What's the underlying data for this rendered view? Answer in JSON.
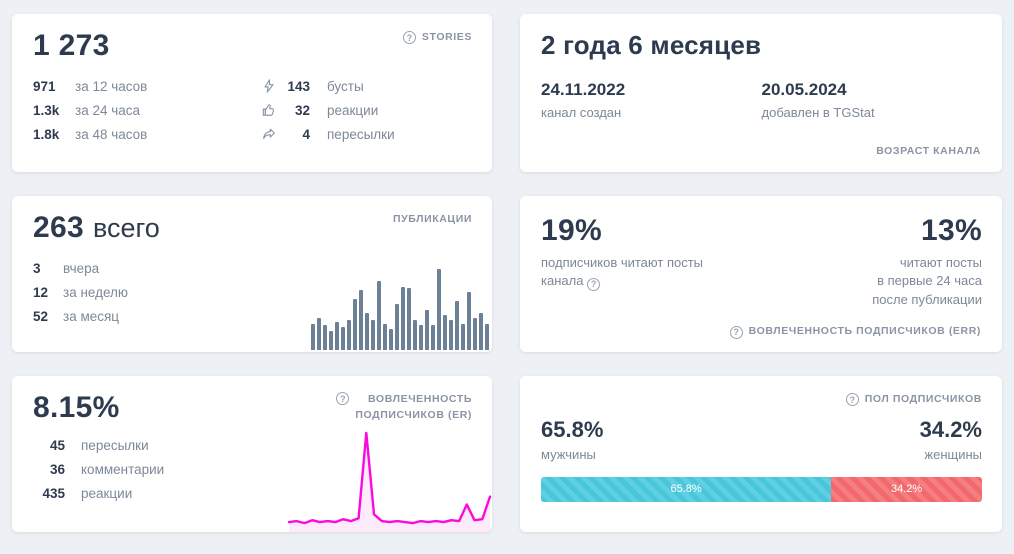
{
  "colors": {
    "page_bg": "#edf0f4",
    "card_bg": "#ffffff",
    "dark": "#2e3b4e",
    "gray": "#7d8899",
    "caps": "#8a94a5",
    "bar": "#6d8196",
    "magenta": "#fb0add",
    "magenta_fill": "#fbd9f6",
    "male": "#4ac6da",
    "male_stripe": "#5ed0e2",
    "female": "#f2686c",
    "female_stripe": "#f47e80"
  },
  "cards": {
    "stories": {
      "label": "STORIES",
      "value": "1 273",
      "left_stats": [
        {
          "value": "971",
          "label": "за 12 часов"
        },
        {
          "value": "1.3k",
          "label": "за 24 часа"
        },
        {
          "value": "1.8k",
          "label": "за 48 часов"
        }
      ],
      "right_stats": [
        {
          "icon": "bolt-icon",
          "value": "143",
          "label": "бусты"
        },
        {
          "icon": "thumb-up-icon",
          "value": "32",
          "label": "реакции"
        },
        {
          "icon": "forward-icon",
          "value": "4",
          "label": "пересылки"
        }
      ]
    },
    "age": {
      "title": "2 года 6 месяцев",
      "created": {
        "value": "24.11.2022",
        "label": "канал создан"
      },
      "added": {
        "value": "20.05.2024",
        "label": "добавлен в TGStat"
      },
      "footer": "ВОЗРАСТ КАНАЛА"
    },
    "publications": {
      "value": "263",
      "suffix": "всего",
      "label": "ПУБЛИКАЦИИ",
      "stats": [
        {
          "value": "3",
          "label": "вчера"
        },
        {
          "value": "12",
          "label": "за неделю"
        },
        {
          "value": "52",
          "label": "за месяц"
        }
      ],
      "chart_data": {
        "type": "bar",
        "values": [
          0.3,
          0.36,
          0.28,
          0.22,
          0.32,
          0.26,
          0.34,
          0.58,
          0.68,
          0.42,
          0.34,
          0.78,
          0.3,
          0.24,
          0.52,
          0.72,
          0.7,
          0.34,
          0.28,
          0.46,
          0.28,
          0.92,
          0.4,
          0.34,
          0.56,
          0.3,
          0.66,
          0.36,
          0.42,
          0.3
        ]
      }
    },
    "err": {
      "left": {
        "value": "19%",
        "label": "подписчиков читают посты\nканала"
      },
      "right": {
        "value": "13%",
        "label": "читают посты\nв первые 24 часа\nпосле публикации"
      },
      "footer": "ВОВЛЕЧЕННОСТЬ ПОДПИСЧИКОВ (ERR)"
    },
    "er": {
      "value": "8.15%",
      "label": "ВОВЛЕЧЕННОСТЬ\nПОДПИСЧИКОВ (ER)",
      "stats": [
        {
          "value": "45",
          "label": "пересылки"
        },
        {
          "value": "36",
          "label": "комментарии"
        },
        {
          "value": "435",
          "label": "реакции"
        }
      ],
      "chart_data": {
        "type": "line",
        "values": [
          0.06,
          0.07,
          0.05,
          0.08,
          0.06,
          0.07,
          0.06,
          0.09,
          0.07,
          0.1,
          0.97,
          0.14,
          0.07,
          0.06,
          0.07,
          0.06,
          0.05,
          0.07,
          0.06,
          0.07,
          0.06,
          0.08,
          0.07,
          0.24,
          0.08,
          0.09,
          0.32
        ]
      }
    },
    "gender": {
      "label": "ПОЛ ПОДПИСЧИКОВ",
      "male": {
        "value": "65.8%",
        "label": "мужчины",
        "percent": 65.8,
        "bar_text": "65.8%"
      },
      "female": {
        "value": "34.2%",
        "label": "женщины",
        "percent": 34.2,
        "bar_text": "34.2%"
      }
    }
  }
}
